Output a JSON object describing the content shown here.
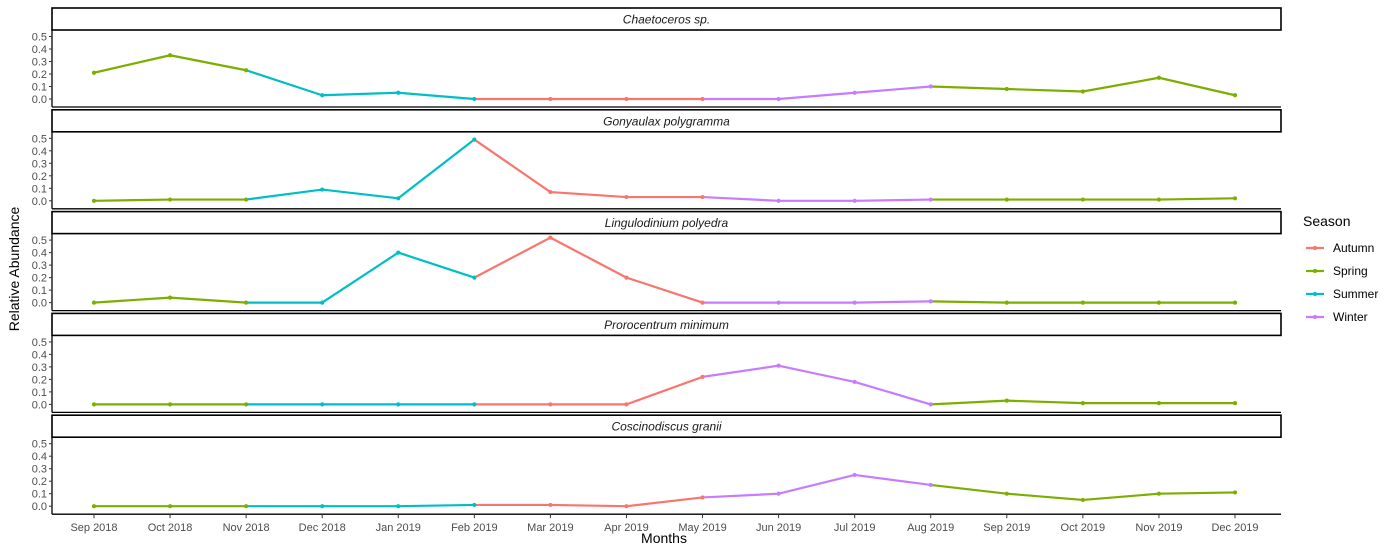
{
  "chart_data": {
    "type": "line",
    "xlabel": "Months",
    "ylabel": "Relative Abundance",
    "x": [
      "Sep 2018",
      "Oct 2018",
      "Nov 2018",
      "Dec 2018",
      "Jan 2019",
      "Feb 2019",
      "Mar 2019",
      "Apr 2019",
      "May 2019",
      "Jun 2019",
      "Jul 2019",
      "Aug 2019",
      "Sep 2019",
      "Oct 2019",
      "Nov 2019",
      "Dec 2019"
    ],
    "ylim": [
      0,
      0.55
    ],
    "yticks": [
      "0.0",
      "0.1",
      "0.2",
      "0.3",
      "0.4",
      "0.5"
    ],
    "grid": false,
    "legend": {
      "title": "Season",
      "placement": "right",
      "entries": [
        {
          "name": "Autumn",
          "color": "#F8766D"
        },
        {
          "name": "Spring",
          "color": "#7CAE00"
        },
        {
          "name": "Summer",
          "color": "#00BFC4"
        },
        {
          "name": "Winter",
          "color": "#C77CFF"
        }
      ]
    },
    "season_by_month": [
      "Spring",
      "Spring",
      "Spring",
      "Summer",
      "Summer",
      "Summer",
      "Autumn",
      "Autumn",
      "Autumn",
      "Winter",
      "Winter",
      "Winter",
      "Spring",
      "Spring",
      "Spring",
      "Spring"
    ],
    "panels": [
      {
        "title": "Chaetoceros sp.",
        "values": [
          0.21,
          0.35,
          0.23,
          0.03,
          0.05,
          0.0,
          0.0,
          0.0,
          0.0,
          0.0,
          0.05,
          0.1,
          0.08,
          0.06,
          0.17,
          0.03
        ]
      },
      {
        "title": "Gonyaulax polygramma",
        "values": [
          0.0,
          0.01,
          0.01,
          0.09,
          0.02,
          0.49,
          0.07,
          0.03,
          0.03,
          0.0,
          0.0,
          0.01,
          0.01,
          0.01,
          0.01,
          0.02
        ]
      },
      {
        "title": "Lingulodinium polyedra",
        "values": [
          0.0,
          0.04,
          0.0,
          0.0,
          0.4,
          0.2,
          0.52,
          0.2,
          0.0,
          0.0,
          0.0,
          0.01,
          0.0,
          0.0,
          0.0,
          0.0
        ]
      },
      {
        "title": "Prorocentrum minimum",
        "values": [
          0.0,
          0.0,
          0.0,
          0.0,
          0.0,
          0.0,
          0.0,
          0.0,
          0.22,
          0.31,
          0.18,
          0.0,
          0.03,
          0.01,
          0.01,
          0.01
        ]
      },
      {
        "title": "Coscinodiscus granii",
        "values": [
          0.0,
          0.0,
          0.0,
          0.0,
          0.0,
          0.01,
          0.01,
          0.0,
          0.07,
          0.1,
          0.25,
          0.17,
          0.1,
          0.05,
          0.1,
          0.11
        ]
      }
    ]
  }
}
